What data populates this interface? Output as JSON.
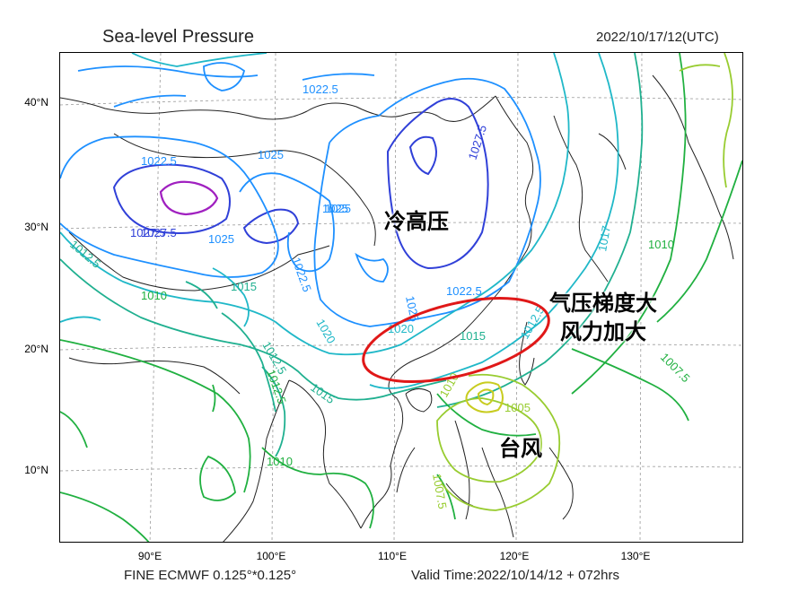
{
  "header": {
    "title": "Sea-level Pressure",
    "datetime": "2022/10/17/12(UTC)"
  },
  "footer": {
    "model": "FINE ECMWF 0.125°*0.125°",
    "valid_time": "Valid Time:2022/10/14/12 + 072hrs"
  },
  "axes": {
    "lat_labels": [
      "40°N",
      "30°N",
      "20°N",
      "10°N"
    ],
    "lon_labels": [
      "90°E",
      "100°E",
      "110°E",
      "120°E",
      "130°E"
    ]
  },
  "contour_labels": [
    "1022.5",
    "1022.5",
    "1025",
    "1027.5",
    "1025",
    "1027.5",
    "1025",
    "1022.5",
    "1025",
    "1012.5",
    "1010",
    "1015",
    "1025",
    "1022.5",
    "1027.5",
    "1020",
    "1020",
    "1015",
    "1012.5",
    "1012.5",
    "1015",
    "1012.5",
    "1010",
    "1017",
    "1010",
    "1007.5",
    "1007.5",
    "1010",
    "1005"
  ],
  "annotations": {
    "cold_high": "冷高压",
    "gradient_line1": "气压梯度大",
    "gradient_line2": "风力加大",
    "typhoon": "台风"
  },
  "colors": {
    "highest": "#a020c0",
    "high": "#3040d8",
    "mid_high": "#1e90ff",
    "mid": "#20b8c8",
    "mid_low": "#20b090",
    "low": "#20b040",
    "lowest": "#98cc30",
    "highlight_ellipse": "#e01818"
  }
}
